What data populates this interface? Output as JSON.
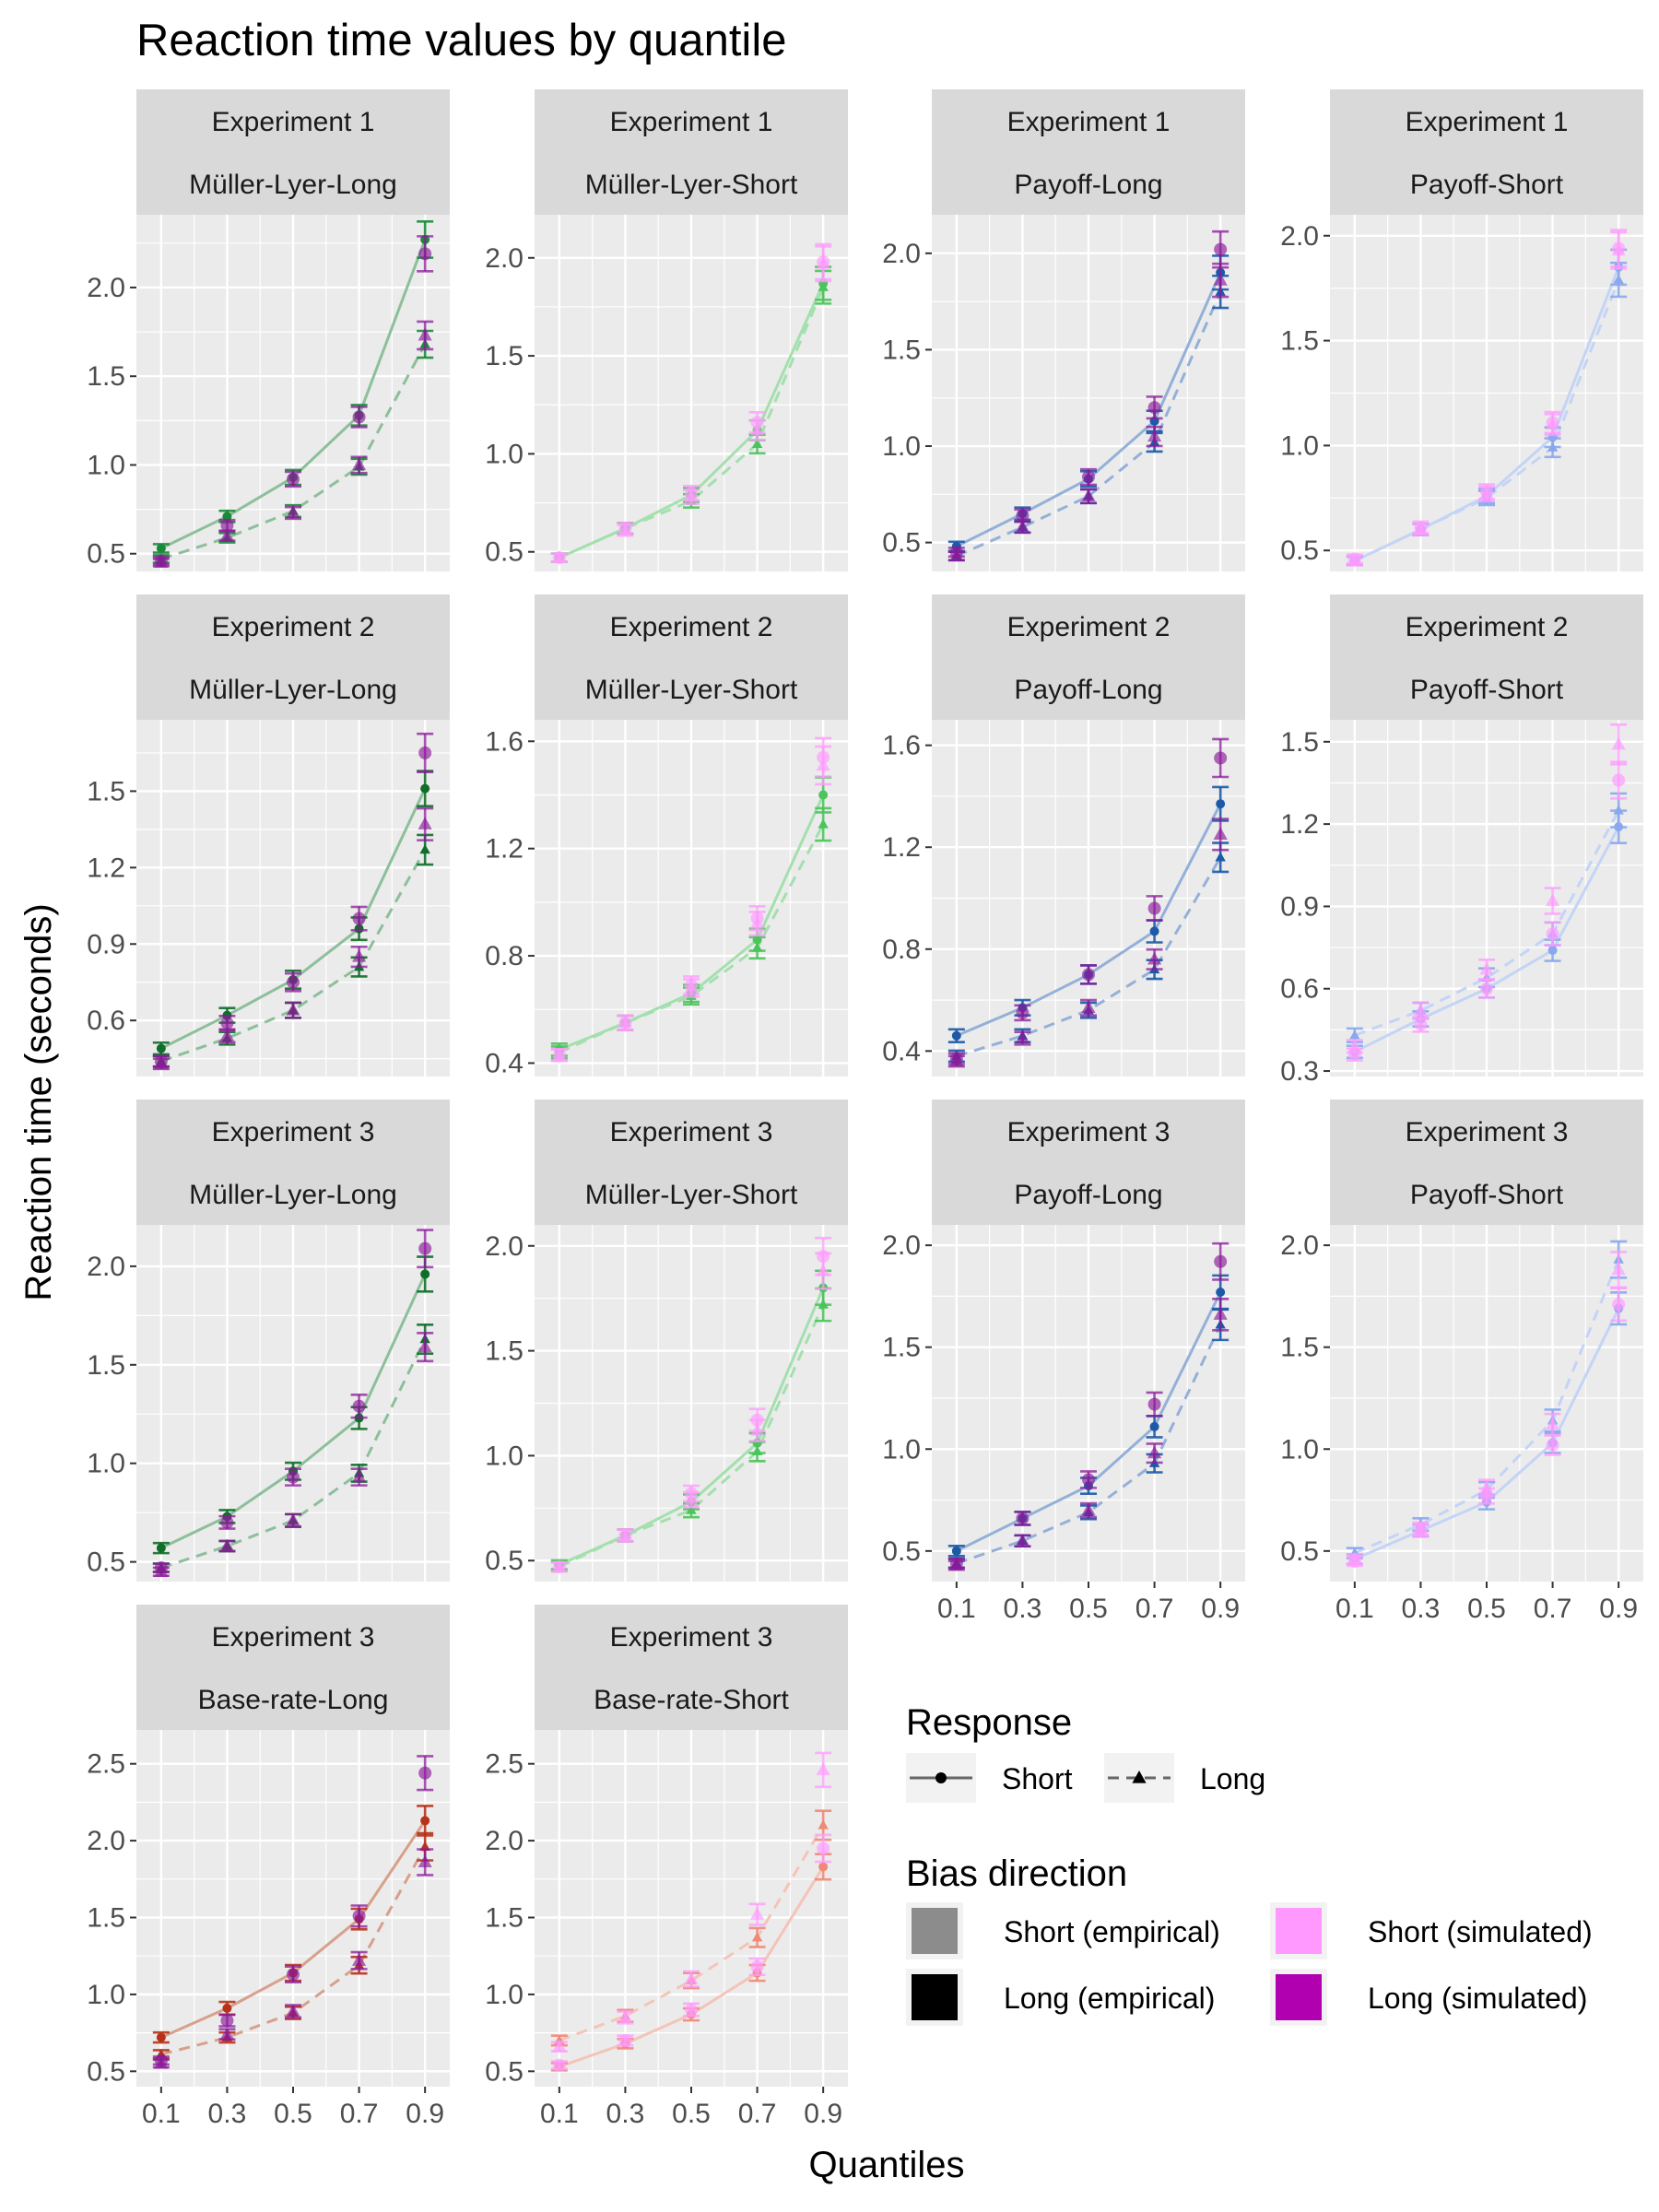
{
  "title": "Reaction time values by quantile",
  "chart_data": {
    "type": "line",
    "title": "Reaction time values by quantile",
    "xlabel": "Quantiles",
    "ylabel": "Reaction time (seconds)",
    "x": [
      0.1,
      0.3,
      0.5,
      0.7,
      0.9
    ],
    "x_tick_labels": [
      "0.1",
      "0.3",
      "0.5",
      "0.7",
      "0.9"
    ],
    "grid": true,
    "legend": {
      "placement": "bottom-right",
      "response": {
        "title": "Response",
        "items": [
          {
            "label": "Short",
            "line": "solid",
            "marker": "circle"
          },
          {
            "label": "Long",
            "line": "dashed",
            "marker": "triangle"
          }
        ]
      },
      "bias": {
        "title": "Bias direction",
        "items": [
          {
            "label": "Short (empirical)",
            "color": "#8c8c8c"
          },
          {
            "label": "Long (empirical)",
            "color": "#000000"
          },
          {
            "label": "Short (simulated)",
            "color": "#ff99ff"
          },
          {
            "label": "Long (simulated)",
            "color": "#b000b0"
          }
        ]
      }
    },
    "panels": [
      {
        "strip": [
          "Experiment 1",
          "Müller-Lyer-Long"
        ],
        "ylim": [
          0.4,
          2.41
        ],
        "yticks": [
          0.5,
          1.0,
          1.5,
          2.0
        ],
        "ytick_labels": [
          "0.5",
          "1.0",
          "1.5",
          "2.0"
        ],
        "line_color": "#8cbf9a",
        "emp_color": "#1a8a3a",
        "sim_color": "#8a1a9a",
        "emp_short": [
          0.53,
          0.71,
          0.93,
          1.28,
          2.27
        ],
        "emp_long": [
          0.47,
          0.59,
          0.74,
          0.99,
          1.68
        ],
        "sim_short": [
          0.46,
          0.66,
          0.92,
          1.27,
          2.19
        ],
        "sim_long": [
          0.45,
          0.6,
          0.73,
          1.0,
          1.73
        ]
      },
      {
        "strip": [
          "Experiment 1",
          "Müller-Lyer-Short"
        ],
        "ylim": [
          0.4,
          2.22
        ],
        "yticks": [
          0.5,
          1.0,
          1.5,
          2.0
        ],
        "ytick_labels": [
          "0.5",
          "1.0",
          "1.5",
          "2.0"
        ],
        "line_color": "#a3e0ad",
        "emp_color": "#4cc45c",
        "sim_color": "#ff99ff",
        "emp_short": [
          0.47,
          0.62,
          0.79,
          1.12,
          1.87
        ],
        "emp_long": [
          0.47,
          0.62,
          0.76,
          1.05,
          1.85
        ],
        "sim_short": [
          0.47,
          0.62,
          0.8,
          1.16,
          1.98
        ],
        "sim_long": [
          0.47,
          0.61,
          0.78,
          1.12,
          1.97
        ]
      },
      {
        "strip": [
          "Experiment 1",
          "Payoff-Long"
        ],
        "ylim": [
          0.35,
          2.2
        ],
        "yticks": [
          0.5,
          1.0,
          1.5,
          2.0
        ],
        "ytick_labels": [
          "0.5",
          "1.0",
          "1.5",
          "2.0"
        ],
        "line_color": "#94b0d8",
        "emp_color": "#1c5aa8",
        "sim_color": "#8a1a9a",
        "emp_short": [
          0.48,
          0.65,
          0.83,
          1.13,
          1.9
        ],
        "emp_long": [
          0.43,
          0.58,
          0.74,
          1.02,
          1.8
        ],
        "sim_short": [
          0.45,
          0.64,
          0.84,
          1.2,
          2.02
        ],
        "sim_long": [
          0.43,
          0.58,
          0.74,
          1.05,
          1.86
        ]
      },
      {
        "strip": [
          "Experiment 1",
          "Payoff-Short"
        ],
        "ylim": [
          0.4,
          2.1
        ],
        "yticks": [
          0.5,
          1.0,
          1.5,
          2.0
        ],
        "ytick_labels": [
          "0.5",
          "1.0",
          "1.5",
          "2.0"
        ],
        "line_color": "#c4d4f6",
        "emp_color": "#8aa8ee",
        "sim_color": "#ff99ff",
        "emp_short": [
          0.45,
          0.6,
          0.76,
          1.04,
          1.85
        ],
        "emp_long": [
          0.45,
          0.6,
          0.75,
          0.99,
          1.79
        ],
        "sim_short": [
          0.46,
          0.61,
          0.78,
          1.11,
          1.94
        ],
        "sim_long": [
          0.45,
          0.6,
          0.77,
          1.1,
          1.93
        ]
      },
      {
        "strip": [
          "Experiment 2",
          "Müller-Lyer-Long"
        ],
        "ylim": [
          0.38,
          1.78
        ],
        "yticks": [
          0.6,
          0.9,
          1.2,
          1.5
        ],
        "ytick_labels": [
          "0.6",
          "0.9",
          "1.2",
          "1.5"
        ],
        "line_color": "#8cbf9a",
        "emp_color": "#0f6e2a",
        "sim_color": "#8a1a9a",
        "emp_short": [
          0.49,
          0.62,
          0.76,
          0.96,
          1.51
        ],
        "emp_long": [
          0.44,
          0.53,
          0.64,
          0.81,
          1.27
        ],
        "sim_short": [
          0.44,
          0.59,
          0.75,
          1.0,
          1.65
        ],
        "sim_long": [
          0.43,
          0.54,
          0.64,
          0.85,
          1.37
        ]
      },
      {
        "strip": [
          "Experiment 2",
          "Müller-Lyer-Short"
        ],
        "ylim": [
          0.35,
          1.68
        ],
        "yticks": [
          0.4,
          0.8,
          1.2,
          1.6
        ],
        "ytick_labels": [
          "0.4",
          "0.8",
          "1.2",
          "1.6"
        ],
        "line_color": "#a3e0ad",
        "emp_color": "#4cc45c",
        "sim_color": "#ff99ff",
        "emp_short": [
          0.45,
          0.55,
          0.66,
          0.86,
          1.4
        ],
        "emp_long": [
          0.44,
          0.55,
          0.65,
          0.83,
          1.29
        ],
        "sim_short": [
          0.43,
          0.55,
          0.69,
          0.94,
          1.54
        ],
        "sim_long": [
          0.43,
          0.55,
          0.68,
          0.92,
          1.51
        ]
      },
      {
        "strip": [
          "Experiment 2",
          "Payoff-Long"
        ],
        "ylim": [
          0.3,
          1.7
        ],
        "yticks": [
          0.4,
          0.8,
          1.2,
          1.6
        ],
        "ytick_labels": [
          "0.4",
          "0.8",
          "1.2",
          "1.6"
        ],
        "line_color": "#94b0d8",
        "emp_color": "#1c5aa8",
        "sim_color": "#8a1a9a",
        "emp_short": [
          0.46,
          0.57,
          0.7,
          0.87,
          1.37
        ],
        "emp_long": [
          0.38,
          0.46,
          0.56,
          0.72,
          1.16
        ],
        "sim_short": [
          0.37,
          0.55,
          0.7,
          0.96,
          1.55
        ],
        "sim_long": [
          0.36,
          0.45,
          0.57,
          0.76,
          1.25
        ]
      },
      {
        "strip": [
          "Experiment 2",
          "Payoff-Short"
        ],
        "ylim": [
          0.28,
          1.58
        ],
        "yticks": [
          0.3,
          0.6,
          0.9,
          1.2,
          1.5
        ],
        "ytick_labels": [
          "0.3",
          "0.6",
          "0.9",
          "1.2",
          "1.5"
        ],
        "line_color": "#c4d4f6",
        "emp_color": "#8aa8ee",
        "sim_color": "#ff99ff",
        "emp_short": [
          0.37,
          0.49,
          0.6,
          0.74,
          1.19
        ],
        "emp_long": [
          0.43,
          0.52,
          0.64,
          0.8,
          1.25
        ],
        "sim_short": [
          0.36,
          0.47,
          0.6,
          0.8,
          1.36
        ],
        "sim_long": [
          0.39,
          0.52,
          0.67,
          0.92,
          1.49
        ]
      },
      {
        "strip": [
          "Experiment 3",
          "Müller-Lyer-Long"
        ],
        "ylim": [
          0.4,
          2.21
        ],
        "yticks": [
          0.5,
          1.0,
          1.5,
          2.0
        ],
        "ytick_labels": [
          "0.5",
          "1.0",
          "1.5",
          "2.0"
        ],
        "line_color": "#8cbf9a",
        "emp_color": "#0f6e2a",
        "sim_color": "#8a1a9a",
        "emp_short": [
          0.57,
          0.73,
          0.96,
          1.23,
          1.96
        ],
        "emp_long": [
          0.47,
          0.58,
          0.71,
          0.95,
          1.63
        ],
        "sim_short": [
          0.47,
          0.7,
          0.93,
          1.29,
          2.09
        ],
        "sim_long": [
          0.45,
          0.58,
          0.71,
          0.93,
          1.59
        ]
      },
      {
        "strip": [
          "Experiment 3",
          "Müller-Lyer-Short"
        ],
        "ylim": [
          0.4,
          2.1
        ],
        "yticks": [
          0.5,
          1.0,
          1.5,
          2.0
        ],
        "ytick_labels": [
          "0.5",
          "1.0",
          "1.5",
          "2.0"
        ],
        "line_color": "#a3e0ad",
        "emp_color": "#4cc45c",
        "sim_color": "#ff99ff",
        "emp_short": [
          0.48,
          0.62,
          0.78,
          1.06,
          1.8
        ],
        "emp_long": [
          0.47,
          0.62,
          0.74,
          1.02,
          1.72
        ],
        "sim_short": [
          0.47,
          0.62,
          0.82,
          1.17,
          1.95
        ],
        "sim_long": [
          0.47,
          0.62,
          0.79,
          1.12,
          1.88
        ]
      },
      {
        "strip": [
          "Experiment 3",
          "Payoff-Long"
        ],
        "ylim": [
          0.35,
          2.1
        ],
        "yticks": [
          0.5,
          1.0,
          1.5,
          2.0
        ],
        "ytick_labels": [
          "0.5",
          "1.0",
          "1.5",
          "2.0"
        ],
        "line_color": "#94b0d8",
        "emp_color": "#1c5aa8",
        "sim_color": "#8a1a9a",
        "emp_short": [
          0.5,
          0.66,
          0.82,
          1.11,
          1.77
        ],
        "emp_long": [
          0.44,
          0.55,
          0.69,
          0.93,
          1.61
        ],
        "sim_short": [
          0.44,
          0.66,
          0.85,
          1.22,
          1.92
        ],
        "sim_long": [
          0.43,
          0.55,
          0.7,
          0.98,
          1.66
        ]
      },
      {
        "strip": [
          "Experiment 3",
          "Payoff-Short"
        ],
        "ylim": [
          0.35,
          2.1
        ],
        "yticks": [
          0.5,
          1.0,
          1.5,
          2.0
        ],
        "ytick_labels": [
          "0.5",
          "1.0",
          "1.5",
          "2.0"
        ],
        "line_color": "#c4d4f6",
        "emp_color": "#8aa8ee",
        "sim_color": "#ff99ff",
        "emp_short": [
          0.46,
          0.6,
          0.74,
          1.03,
          1.69
        ],
        "emp_long": [
          0.49,
          0.63,
          0.8,
          1.14,
          1.93
        ],
        "sim_short": [
          0.45,
          0.6,
          0.77,
          1.02,
          1.71
        ],
        "sim_long": [
          0.46,
          0.61,
          0.81,
          1.12,
          1.88
        ]
      },
      {
        "strip": [
          "Experiment 3",
          "Base-rate-Long"
        ],
        "ylim": [
          0.4,
          2.72
        ],
        "yticks": [
          0.5,
          1.0,
          1.5,
          2.0,
          2.5
        ],
        "ytick_labels": [
          "0.5",
          "1.0",
          "1.5",
          "2.0",
          "2.5"
        ],
        "line_color": "#d8a08c",
        "emp_color": "#b8321a",
        "sim_color": "#8a1a9a",
        "emp_short": [
          0.72,
          0.91,
          1.14,
          1.49,
          2.13
        ],
        "emp_long": [
          0.61,
          0.72,
          0.88,
          1.19,
          1.96
        ],
        "sim_short": [
          0.57,
          0.83,
          1.13,
          1.51,
          2.44
        ],
        "sim_long": [
          0.55,
          0.74,
          0.89,
          1.22,
          1.86
        ]
      },
      {
        "strip": [
          "Experiment 3",
          "Base-rate-Short"
        ],
        "ylim": [
          0.4,
          2.72
        ],
        "yticks": [
          0.5,
          1.0,
          1.5,
          2.0,
          2.5
        ],
        "ytick_labels": [
          "0.5",
          "1.0",
          "1.5",
          "2.0",
          "2.5"
        ],
        "line_color": "#f4c4b8",
        "emp_color": "#f08878",
        "sim_color": "#ff99ff",
        "emp_short": [
          0.53,
          0.68,
          0.87,
          1.14,
          1.83
        ],
        "emp_long": [
          0.7,
          0.86,
          1.09,
          1.37,
          2.1
        ],
        "sim_short": [
          0.54,
          0.7,
          0.9,
          1.18,
          1.95
        ],
        "sim_long": [
          0.66,
          0.85,
          1.1,
          1.52,
          2.46
        ]
      }
    ]
  }
}
